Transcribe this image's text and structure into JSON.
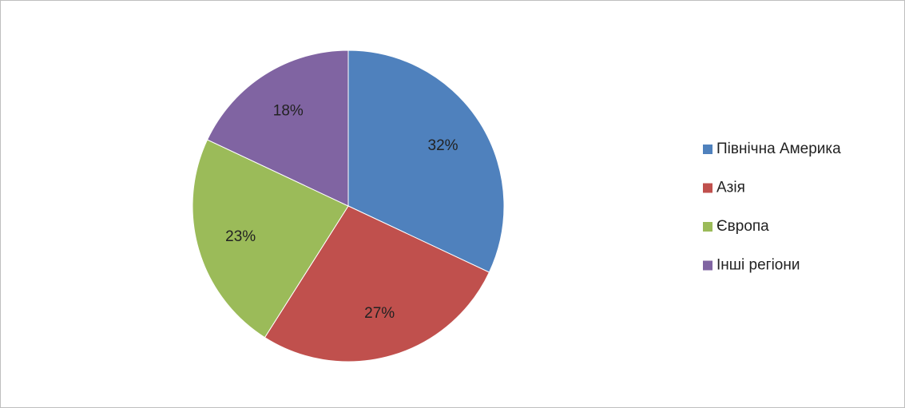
{
  "chart_data": {
    "type": "pie",
    "categories": [
      "Північна Америка",
      "Азія",
      "Європа",
      "Інші регіони"
    ],
    "values": [
      32,
      27,
      23,
      18
    ],
    "value_labels": [
      "32%",
      "27%",
      "23%",
      "18%"
    ],
    "colors": [
      "#4f81bd",
      "#c0504d",
      "#9bbb59",
      "#8064a2"
    ],
    "legend": "right"
  }
}
